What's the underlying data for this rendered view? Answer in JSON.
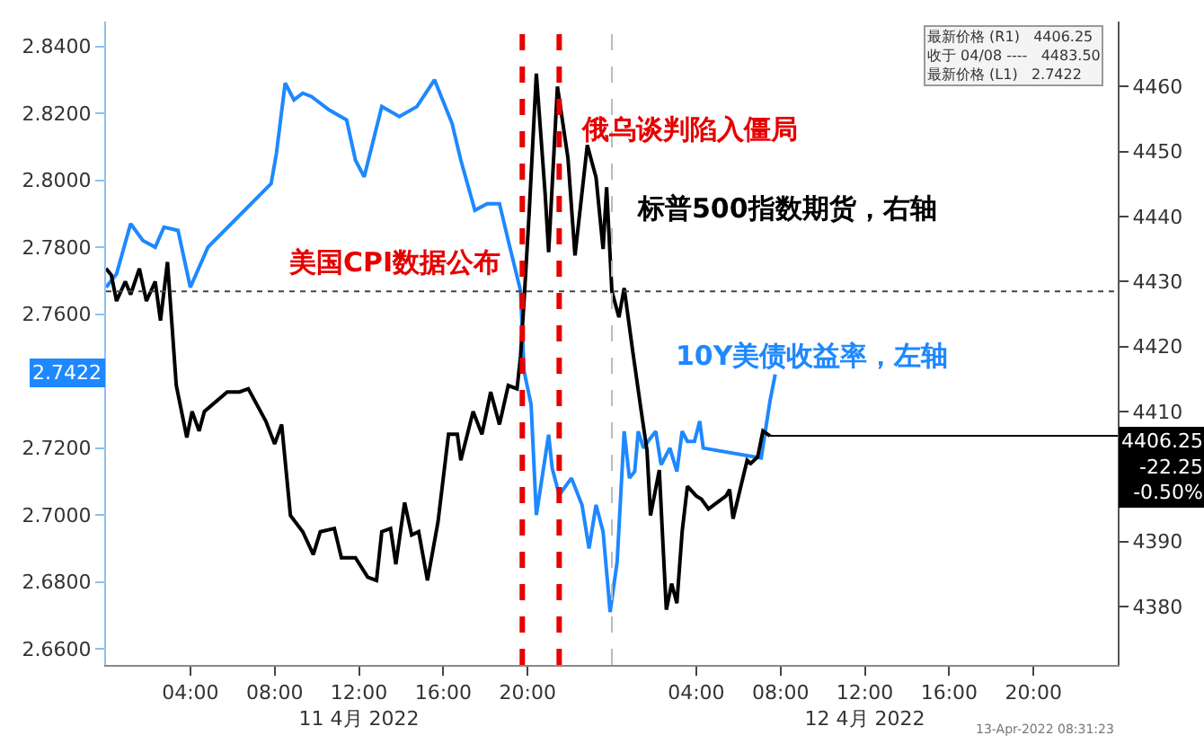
{
  "chart_data": {
    "type": "line",
    "series": [
      {
        "name": "标普500指数期货，右轴",
        "color": "#000000",
        "axis": "y2",
        "x": [
          "2022-04-11T00:00",
          "2022-04-11T00:15",
          "2022-04-11T00:30",
          "2022-04-11T00:55",
          "2022-04-11T01:10",
          "2022-04-11T01:35",
          "2022-04-11T01:55",
          "2022-04-11T02:20",
          "2022-04-11T02:35",
          "2022-04-11T02:55",
          "2022-04-11T03:20",
          "2022-04-11T03:50",
          "2022-04-11T04:05",
          "2022-04-11T04:25",
          "2022-04-11T04:40",
          "2022-04-11T05:45",
          "2022-04-11T06:20",
          "2022-04-11T06:45",
          "2022-04-11T07:35",
          "2022-04-11T08:00",
          "2022-04-11T08:20",
          "2022-04-11T08:45",
          "2022-04-11T09:20",
          "2022-04-11T09:50",
          "2022-04-11T10:10",
          "2022-04-11T10:50",
          "2022-04-11T11:10",
          "2022-04-11T11:50",
          "2022-04-11T12:25",
          "2022-04-11T12:50",
          "2022-04-11T13:05",
          "2022-04-11T13:30",
          "2022-04-11T13:45",
          "2022-04-11T14:10",
          "2022-04-11T14:30",
          "2022-04-11T14:50",
          "2022-04-11T15:15",
          "2022-04-11T15:45",
          "2022-04-11T16:15",
          "2022-04-11T16:40",
          "2022-04-11T16:50",
          "2022-04-11T17:25",
          "2022-04-11T17:50",
          "2022-04-11T18:15",
          "2022-04-11T18:40",
          "2022-04-11T19:05",
          "2022-04-11T19:30",
          "2022-04-11T19:40",
          "2022-04-11T19:50",
          "2022-04-11T20:05",
          "2022-04-11T20:25",
          "2022-04-11T20:50",
          "2022-04-11T21:00",
          "2022-04-11T21:25",
          "2022-04-11T21:55",
          "2022-04-11T22:15",
          "2022-04-11T22:50",
          "2022-04-11T23:15",
          "2022-04-11T23:35",
          "2022-04-11T23:45",
          "2022-04-12T00:00",
          "2022-04-12T00:20",
          "2022-04-12T00:35",
          "2022-04-12T01:00",
          "2022-04-12T01:25",
          "2022-04-12T01:40",
          "2022-04-12T01:50",
          "2022-04-12T02:15",
          "2022-04-12T02:25",
          "2022-04-12T02:35",
          "2022-04-12T02:50",
          "2022-04-12T03:05",
          "2022-04-12T03:20",
          "2022-04-12T03:35",
          "2022-04-12T04:00",
          "2022-04-12T04:15",
          "2022-04-12T04:35",
          "2022-04-12T05:25",
          "2022-04-12T05:35",
          "2022-04-12T05:45",
          "2022-04-12T06:05",
          "2022-04-12T06:25",
          "2022-04-12T06:35",
          "2022-04-12T06:55",
          "2022-04-12T07:10",
          "2022-04-12T07:30"
        ],
        "values": [
          4432,
          4431,
          4427,
          4430,
          4428,
          4432,
          4427,
          4430,
          4424,
          4433,
          4414,
          4406,
          4410,
          4407,
          4410,
          4413,
          4413,
          4413.5,
          4408.5,
          4405,
          4408,
          4394,
          4391.5,
          4388,
          4391.5,
          4392,
          4387.5,
          4387.5,
          4384.5,
          4384,
          4391.5,
          4392,
          4386.5,
          4396,
          4391,
          4391.5,
          4384,
          4393,
          4406.5,
          4406.5,
          4402.5,
          4410,
          4406.5,
          4413,
          4408,
          4414,
          4413.5,
          4418.5,
          4427,
          4441,
          4462,
          4443.5,
          4434.5,
          4460,
          4449,
          4434,
          4451,
          4446,
          4435,
          4444.5,
          4428.5,
          4424.5,
          4429,
          4419,
          4409.5,
          4404,
          4394,
          4401,
          4390,
          4379.5,
          4383.5,
          4380.5,
          4391.5,
          4398.5,
          4397,
          4396.5,
          4395,
          4397,
          4398,
          4393.5,
          4398,
          4402.5,
          4402,
          4403,
          4407,
          4406.25
        ]
      },
      {
        "name": "10Y美债收益率，左轴",
        "color": "#1e88ff",
        "axis": "y",
        "x": [
          "2022-04-11T00:00",
          "2022-04-11T00:30",
          "2022-04-11T01:10",
          "2022-04-11T01:45",
          "2022-04-11T02:20",
          "2022-04-11T02:45",
          "2022-04-11T03:25",
          "2022-04-11T04:00",
          "2022-04-11T04:50",
          "2022-04-11T07:50",
          "2022-04-11T08:05",
          "2022-04-11T08:30",
          "2022-04-11T08:55",
          "2022-04-11T09:20",
          "2022-04-11T09:45",
          "2022-04-11T10:35",
          "2022-04-11T11:25",
          "2022-04-11T11:50",
          "2022-04-11T12:15",
          "2022-04-11T13:05",
          "2022-04-11T13:55",
          "2022-04-11T14:45",
          "2022-04-11T15:35",
          "2022-04-11T16:25",
          "2022-04-11T16:50",
          "2022-04-11T17:30",
          "2022-04-11T18:05",
          "2022-04-11T18:40",
          "2022-04-11T19:05",
          "2022-04-11T19:40",
          "2022-04-11T19:50",
          "2022-04-11T20:10",
          "2022-04-11T20:25",
          "2022-04-11T21:00",
          "2022-04-11T21:10",
          "2022-04-11T21:30",
          "2022-04-11T22:05",
          "2022-04-11T22:35",
          "2022-04-11T22:55",
          "2022-04-11T23:15",
          "2022-04-11T23:35",
          "2022-04-11T23:50",
          "2022-04-11T23:55",
          "2022-04-12T00:15",
          "2022-04-12T00:35",
          "2022-04-12T00:50",
          "2022-04-12T01:05",
          "2022-04-12T01:15",
          "2022-04-12T01:30",
          "2022-04-12T01:50",
          "2022-04-12T02:05",
          "2022-04-12T02:20",
          "2022-04-12T02:45",
          "2022-04-12T03:05",
          "2022-04-12T03:20",
          "2022-04-12T03:35",
          "2022-04-12T03:55",
          "2022-04-12T04:10",
          "2022-04-12T04:20",
          "2022-04-12T07:05",
          "2022-04-12T07:30",
          "2022-04-12T07:45"
        ],
        "values": [
          2.768,
          2.772,
          2.787,
          2.782,
          2.78,
          2.786,
          2.785,
          2.768,
          2.78,
          2.799,
          2.808,
          2.829,
          2.824,
          2.826,
          2.825,
          2.821,
          2.818,
          2.806,
          2.801,
          2.822,
          2.819,
          2.822,
          2.83,
          2.817,
          2.806,
          2.791,
          2.793,
          2.793,
          2.782,
          2.767,
          2.743,
          2.733,
          2.7,
          2.724,
          2.714,
          2.706,
          2.711,
          2.703,
          2.69,
          2.703,
          2.695,
          2.677,
          2.671,
          2.686,
          2.725,
          2.711,
          2.713,
          2.725,
          2.72,
          2.723,
          2.725,
          2.715,
          2.72,
          2.713,
          2.725,
          2.722,
          2.722,
          2.728,
          2.72,
          2.717,
          2.734,
          2.742
        ]
      }
    ],
    "xlim": [
      "2022-04-11T00:00",
      "2022-04-13T00:00"
    ],
    "xticks": [
      {
        "value": "2022-04-11T04:00",
        "label": "04:00"
      },
      {
        "value": "2022-04-11T08:00",
        "label": "08:00"
      },
      {
        "value": "2022-04-11T12:00",
        "label": "12:00\n11 4月 2022"
      },
      {
        "value": "2022-04-11T16:00",
        "label": "16:00"
      },
      {
        "value": "2022-04-11T20:00",
        "label": "20:00"
      },
      {
        "value": "2022-04-12T04:00",
        "label": "04:00"
      },
      {
        "value": "2022-04-12T08:00",
        "label": "08:00"
      },
      {
        "value": "2022-04-12T12:00",
        "label": "12:00\n12 4月 2022"
      },
      {
        "value": "2022-04-12T16:00",
        "label": "16:00"
      },
      {
        "value": "2022-04-12T20:00",
        "label": "20:00"
      }
    ],
    "ylim": [
      2.6552,
      2.8474
    ],
    "yticks": [
      {
        "value": 2.66,
        "label": "2.6600"
      },
      {
        "value": 2.68,
        "label": "2.6800"
      },
      {
        "value": 2.7,
        "label": "2.7000"
      },
      {
        "value": 2.72,
        "label": "2.7200"
      },
      {
        "value": 2.76,
        "label": "2.7600"
      },
      {
        "value": 2.78,
        "label": "2.7800"
      },
      {
        "value": 2.8,
        "label": "2.8000"
      },
      {
        "value": 2.82,
        "label": "2.8200"
      },
      {
        "value": 2.84,
        "label": "2.8400"
      }
    ],
    "y2lim": [
      4371,
      4470
    ],
    "y2ticks": [
      4380,
      4390,
      4410,
      4420,
      4430,
      4440,
      4450,
      4460
    ],
    "ref_lines": [
      {
        "axis": "x",
        "value": "2022-04-11T19:45",
        "label": "美国CPI数据公布",
        "color": "#e60000",
        "line_style": "dashed"
      },
      {
        "axis": "x",
        "value": "2022-04-11T21:30",
        "label": "俄乌谈判陷入僵局",
        "color": "#e60000",
        "line_style": "dashed"
      },
      {
        "axis": "x",
        "value": "2022-04-12T00:00",
        "color": "#bbbbbb",
        "line_style": "dashed"
      },
      {
        "axis": "y2",
        "value": 4428.5,
        "color": "#444444",
        "line_style": "dotted"
      },
      {
        "axis": "y2",
        "value": 4406.25,
        "label": "4406.25\n-22.25\n-0.50%",
        "color": "#000000",
        "line_style": "solid"
      }
    ],
    "annotations": [
      {
        "text": "2.7422",
        "y": 2.7422
      },
      "最新价格 (R1)   4406.25",
      "收于 04/08 ----   4483.50",
      "最新价格 (L1)   2.7422",
      "13-Apr-2022 08:31:23"
    ],
    "legend": false,
    "marker": "none",
    "line_style": "solid"
  }
}
